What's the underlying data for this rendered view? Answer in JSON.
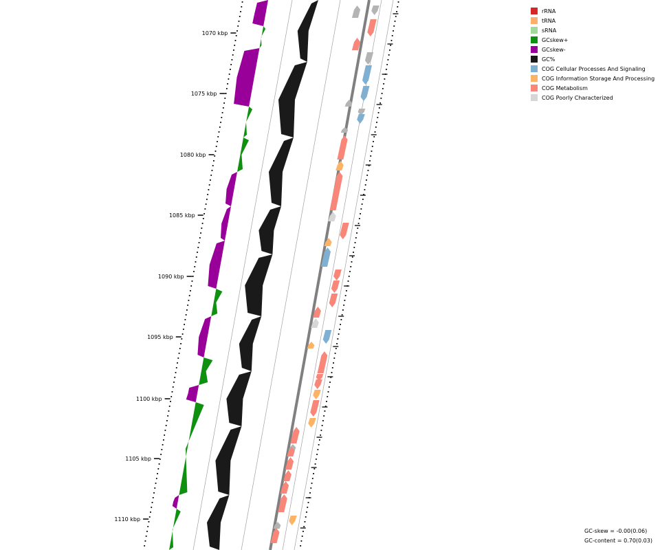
{
  "colors": {
    "rRNA": "#d62728",
    "tRNA": "#fdae6b",
    "sRNA": "#a1d99b",
    "gcskew_plus": "#109010",
    "gcskew_minus": "#990099",
    "gc_content": "#1a1a1a",
    "backbone": "#808080",
    "ring_line": "#a0a0a0",
    "cog_cellular": "#7fb0d2",
    "cog_information": "#fdb366",
    "cog_metabolism": "#f8877a",
    "cog_poorly": "#d6d6d6",
    "arrow_marker": "#b4b4b4"
  },
  "legend": [
    {
      "label": "rRNA",
      "color_key": "rRNA",
      "icon": "swatch-square"
    },
    {
      "label": "tRNA",
      "color_key": "tRNA",
      "icon": "swatch-square"
    },
    {
      "label": "sRNA",
      "color_key": "sRNA",
      "icon": "swatch-square"
    },
    {
      "label": "GCskew+",
      "color_key": "gcskew_plus",
      "icon": "swatch-square"
    },
    {
      "label": "GCskew-",
      "color_key": "gcskew_minus",
      "icon": "swatch-square"
    },
    {
      "label": "GC%",
      "color_key": "gc_content",
      "icon": "swatch-square"
    },
    {
      "label": "COG Cellular Processes And Signaling",
      "color_key": "cog_cellular",
      "icon": "swatch-square"
    },
    {
      "label": "COG Information Storage And Processing",
      "color_key": "cog_information",
      "icon": "swatch-square"
    },
    {
      "label": "COG Metabolism",
      "color_key": "cog_metabolism",
      "icon": "swatch-square"
    },
    {
      "label": "COG Poorly Characterized",
      "color_key": "cog_poorly",
      "icon": "swatch-square"
    }
  ],
  "scale_labels": [
    "1070 kbp",
    "1075 kbp",
    "1080 kbp",
    "1085 kbp",
    "1090 kbp",
    "1095 kbp",
    "1100 kbp",
    "1105 kbp",
    "1110 kbp"
  ],
  "stats": {
    "gc_skew": "GC-skew = -0.00(0.06)",
    "gc_content": "GC-content = 0.70(0.03)"
  }
}
